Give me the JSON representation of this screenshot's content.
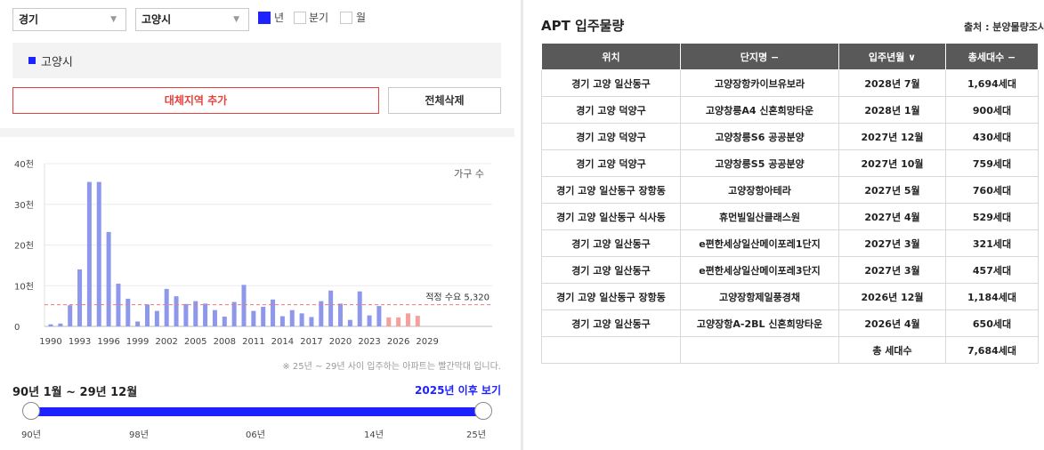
{
  "filters": {
    "region1": "경기",
    "region2": "고양시",
    "period_options": [
      {
        "label": "년",
        "checked": true
      },
      {
        "label": "분기",
        "checked": false
      },
      {
        "label": "월",
        "checked": false
      }
    ]
  },
  "selected_region": "고양시",
  "buttons": {
    "add_region": "대체지역 추가",
    "delete_all": "전체삭제"
  },
  "chart_data": {
    "type": "bar",
    "series_label": "가구 수",
    "y_ticks": [
      "40천",
      "30천",
      "20천",
      "10천",
      "0"
    ],
    "ylim": [
      0,
      40000
    ],
    "x_ticks": [
      "1990",
      "1993",
      "1996",
      "1999",
      "2002",
      "2005",
      "2008",
      "2011",
      "2014",
      "2017",
      "2020",
      "2023",
      "2026",
      "2029"
    ],
    "categories": [
      1990,
      1991,
      1992,
      1993,
      1994,
      1995,
      1996,
      1997,
      1998,
      1999,
      2000,
      2001,
      2002,
      2003,
      2004,
      2005,
      2006,
      2007,
      2008,
      2009,
      2010,
      2011,
      2012,
      2013,
      2014,
      2015,
      2016,
      2017,
      2018,
      2019,
      2020,
      2021,
      2022,
      2023,
      2024,
      2025,
      2026,
      2027,
      2028
    ],
    "values": [
      500,
      700,
      5200,
      14000,
      35500,
      35500,
      23200,
      10500,
      6800,
      1200,
      5400,
      3800,
      9200,
      7400,
      5500,
      6200,
      5600,
      4000,
      2400,
      6000,
      10200,
      3800,
      4800,
      6600,
      2500,
      4000,
      3200,
      2300,
      6200,
      8800,
      5600,
      1600,
      8600,
      2700,
      5000,
      2200,
      2200,
      3200,
      2600
    ],
    "highlight_from": 2025,
    "colors": {
      "normal": "#8d97ec",
      "highlight": "#f6a09c",
      "reference_line": "#e87d7a"
    },
    "reference_line": {
      "label": "적정 수요 5,320",
      "value": 5320
    },
    "grid": true
  },
  "note": "※ 25년 ~ 29년 사이 입주하는 아파트는 빨간막대 입니다.",
  "range": {
    "label": "90년 1월 ~ 29년 12월",
    "after_link": "2025년 이후 보기",
    "ticks": [
      "90년",
      "98년",
      "06년",
      "14년",
      "25년"
    ]
  },
  "apt": {
    "title": "APT 입주물량",
    "source": "출처 : 분양물량조사",
    "headers": [
      "위치",
      "단지명 −",
      "입주년월 ∨",
      "총세대수 −"
    ],
    "rows": [
      [
        "경기 고양 일산동구",
        "고양장항카이브유보라",
        "2028년 7월",
        "1,694세대"
      ],
      [
        "경기 고양 덕양구",
        "고양창릉A4 신혼희망타운",
        "2028년 1월",
        "900세대"
      ],
      [
        "경기 고양 덕양구",
        "고양창릉S6 공공분양",
        "2027년 12월",
        "430세대"
      ],
      [
        "경기 고양 덕양구",
        "고양창릉S5 공공분양",
        "2027년 10월",
        "759세대"
      ],
      [
        "경기 고양 일산동구 장항동",
        "고양장항아테라",
        "2027년 5월",
        "760세대"
      ],
      [
        "경기 고양 일산동구 식사동",
        "휴먼빌일산클래스원",
        "2027년 4월",
        "529세대"
      ],
      [
        "경기 고양 일산동구",
        "e편한세상일산메이포레1단지",
        "2027년 3월",
        "321세대"
      ],
      [
        "경기 고양 일산동구",
        "e편한세상일산메이포레3단지",
        "2027년 3월",
        "457세대"
      ],
      [
        "경기 고양 일산동구 장항동",
        "고양장항제일풍경채",
        "2026년 12월",
        "1,184세대"
      ],
      [
        "경기 고양 일산동구",
        "고양장항A-2BL 신혼희망타운",
        "2026년 4월",
        "650세대"
      ]
    ],
    "total_label": "총 세대수",
    "total_value": "7,684세대"
  }
}
